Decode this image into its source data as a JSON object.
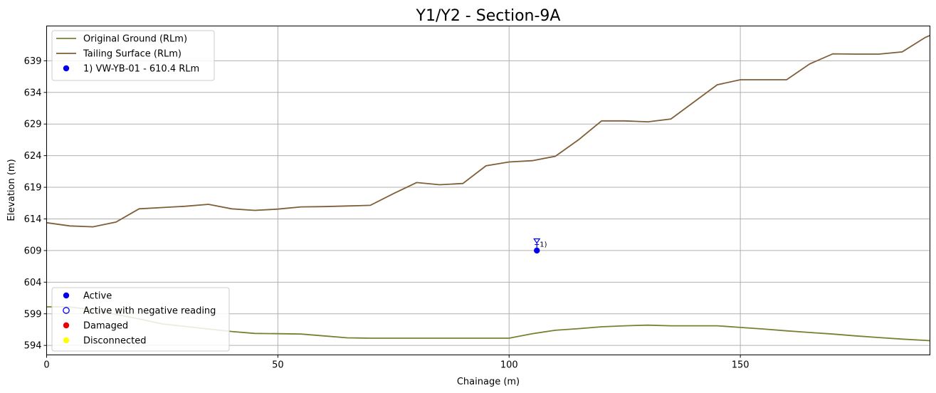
{
  "chart_data": {
    "type": "line",
    "title": "Y1/Y2 - Section-9A",
    "xlabel": "Chainage (m)",
    "ylabel": "Elevation (m)",
    "xlim": [
      0,
      191
    ],
    "ylim": [
      592.5,
      644.5
    ],
    "xticks": [
      0,
      50,
      100,
      150
    ],
    "yticks": [
      594,
      599,
      604,
      609,
      614,
      619,
      624,
      629,
      634,
      639
    ],
    "grid": true,
    "series": [
      {
        "name": "Original Ground (RLm)",
        "color": "#7a8030",
        "x": [
          0,
          5,
          10,
          15,
          20,
          25,
          30,
          35,
          40,
          45,
          50,
          55,
          60,
          65,
          70,
          75,
          80,
          85,
          90,
          95,
          100,
          105,
          110,
          115,
          120,
          125,
          130,
          135,
          140,
          145,
          150,
          155,
          160,
          165,
          170,
          175,
          180,
          185,
          191
        ],
        "y": [
          600.1,
          600.1,
          599.6,
          598.9,
          598.2,
          597.4,
          597.0,
          596.6,
          596.2,
          595.9,
          595.85,
          595.8,
          595.5,
          595.2,
          595.15,
          595.15,
          595.15,
          595.15,
          595.15,
          595.15,
          595.15,
          595.85,
          596.4,
          596.65,
          596.95,
          597.1,
          597.2,
          597.1,
          597.1,
          597.1,
          596.85,
          596.6,
          596.3,
          596.05,
          595.8,
          595.5,
          595.25,
          595.0,
          594.75
        ]
      },
      {
        "name": "Tailing Surface (RLm)",
        "color": "#7f5f38",
        "x": [
          0,
          5,
          10,
          15,
          20,
          25,
          30,
          35,
          40,
          45,
          50,
          55,
          60,
          65,
          70,
          75,
          80,
          85,
          90,
          95,
          100,
          105,
          110,
          115,
          120,
          125,
          130,
          135,
          140,
          145,
          150,
          155,
          160,
          165,
          170,
          175,
          180,
          185,
          190,
          191
        ],
        "y": [
          613.4,
          612.9,
          612.75,
          613.5,
          615.6,
          615.8,
          616.0,
          616.3,
          615.6,
          615.35,
          615.55,
          615.9,
          615.95,
          616.05,
          616.15,
          618.0,
          619.75,
          619.4,
          619.6,
          622.4,
          623.0,
          623.2,
          623.9,
          626.5,
          629.5,
          629.5,
          629.35,
          629.8,
          632.5,
          635.2,
          636.0,
          636.0,
          636.0,
          638.5,
          640.1,
          640.05,
          640.05,
          640.4,
          642.7,
          643.0
        ]
      }
    ],
    "instruments": [
      {
        "label": "1) VW-YB-01 - 610.4 RLm",
        "tag": "1)",
        "x": 106,
        "y": 609.0,
        "marker_level": 610.4,
        "status": "Active",
        "color": "#0000ee"
      }
    ],
    "legend_series_placement": "top-left",
    "status_legend_placement": "bottom-left",
    "status_legend": [
      {
        "label": "Active",
        "color": "#0000ee",
        "fill": "#0000ee"
      },
      {
        "label": "Active with negative reading",
        "color": "#0000ee",
        "fill": "none"
      },
      {
        "label": "Damaged",
        "color": "#ee0000",
        "fill": "#ee0000"
      },
      {
        "label": "Disconnected",
        "color": "#ffff00",
        "fill": "#ffff00"
      }
    ]
  }
}
